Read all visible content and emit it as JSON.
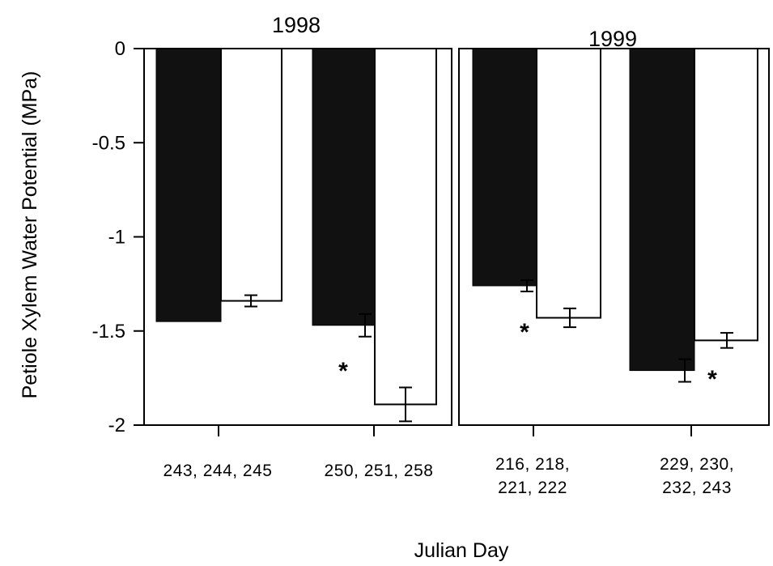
{
  "chart_data": {
    "type": "bar",
    "ylabel": "Petiole Xylem Water Potential (MPa)",
    "xlabel": "Julian Day",
    "ylim": [
      -2,
      0
    ],
    "yticks": [
      "0",
      "-0.5",
      "-1",
      "-1.5",
      "-2"
    ],
    "series_colors": [
      "#111111",
      "#ffffff"
    ],
    "panels": [
      {
        "title": "1998",
        "categories": [
          {
            "label_lines": [
              "243, 244, 245"
            ]
          },
          {
            "label_lines": [
              "250, 251, 258"
            ]
          }
        ],
        "series": [
          {
            "values": [
              -1.45,
              -1.47
            ],
            "errors": [
              0,
              0.06
            ]
          },
          {
            "values": [
              -1.34,
              -1.89
            ],
            "errors": [
              0.03,
              0.09
            ]
          }
        ],
        "significance": [
          {
            "category": 1,
            "symbol": "*"
          }
        ]
      },
      {
        "title": "1999",
        "categories": [
          {
            "label_lines": [
              "216, 218,",
              "221, 222"
            ]
          },
          {
            "label_lines": [
              "229, 230,",
              "232, 243"
            ]
          }
        ],
        "series": [
          {
            "values": [
              -1.26,
              -1.71
            ],
            "errors": [
              0.03,
              0.06
            ]
          },
          {
            "values": [
              -1.43,
              -1.55
            ],
            "errors": [
              0.05,
              0.04
            ]
          }
        ],
        "significance": [
          {
            "category": 0,
            "symbol": "*"
          },
          {
            "category": 1,
            "symbol": "*"
          }
        ]
      }
    ]
  }
}
